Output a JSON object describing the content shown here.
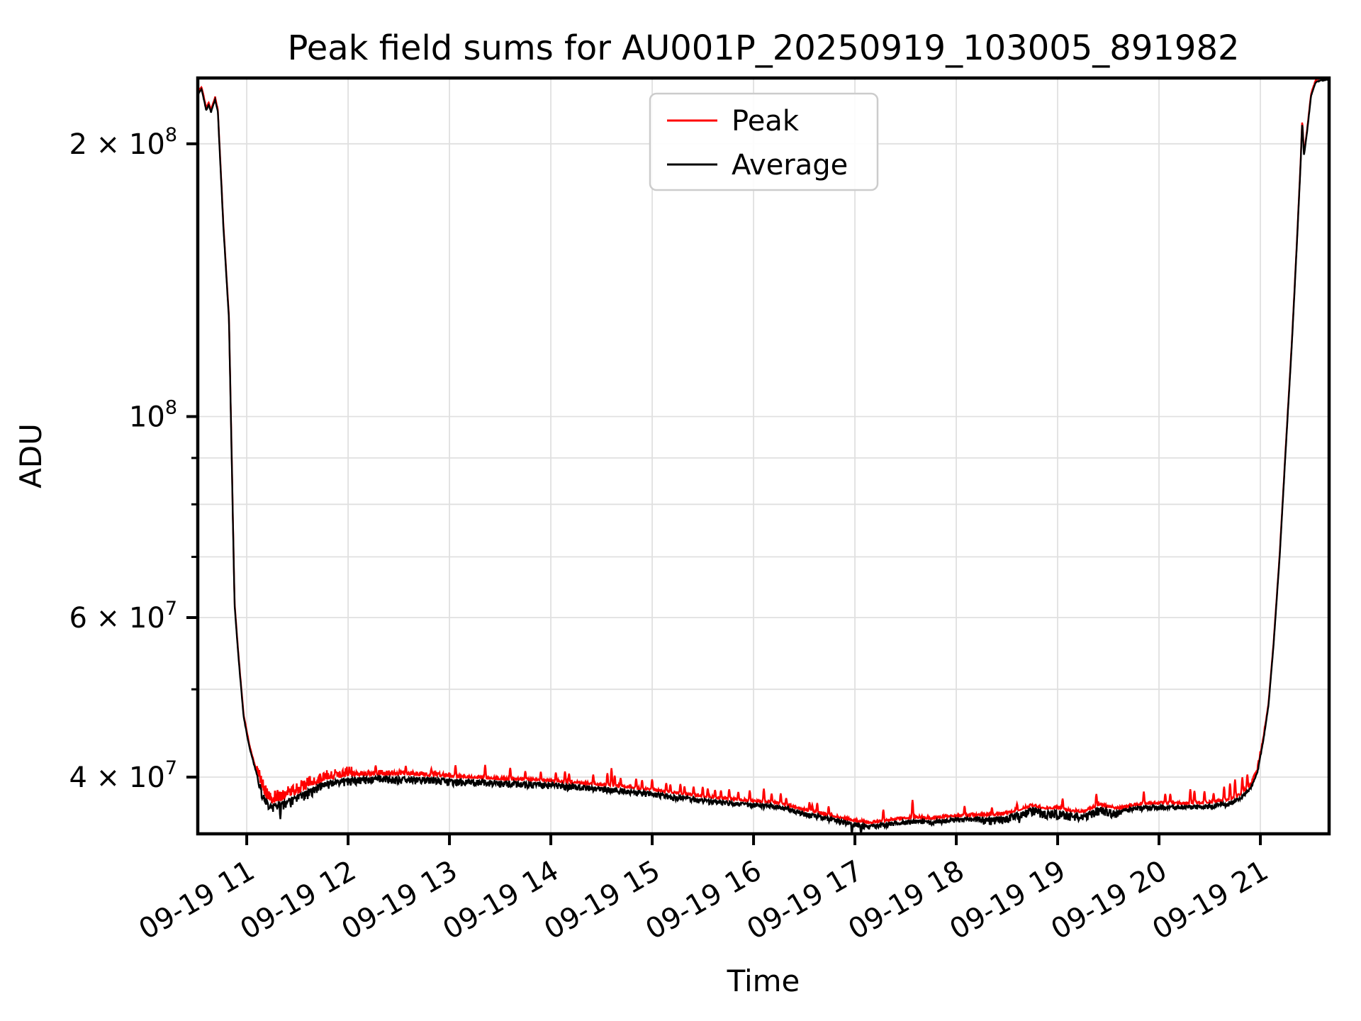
{
  "figure": {
    "title": "Peak field sums for AU001P_20250919_103005_891982",
    "xlabel": "Time",
    "ylabel": "ADU",
    "background": "#ffffff"
  },
  "legend": {
    "position": "upper center",
    "items": [
      {
        "label": "Peak",
        "color": "#ff0000"
      },
      {
        "label": "Average",
        "color": "#000000"
      }
    ]
  },
  "chart_data": {
    "type": "line",
    "title": "Peak field sums for AU001P_20250919_103005_891982",
    "xlabel": "Time",
    "ylabel": "ADU",
    "y_scale": "log",
    "grid": true,
    "legend_position": "upper center",
    "x_range_hours": [
      10.517,
      21.678
    ],
    "ylim": [
      34630000,
      236400000
    ],
    "x_ticks": [
      {
        "label": "09-19 11",
        "hour": 11
      },
      {
        "label": "09-19 12",
        "hour": 12
      },
      {
        "label": "09-19 13",
        "hour": 13
      },
      {
        "label": "09-19 14",
        "hour": 14
      },
      {
        "label": "09-19 15",
        "hour": 15
      },
      {
        "label": "09-19 16",
        "hour": 16
      },
      {
        "label": "09-19 17",
        "hour": 17
      },
      {
        "label": "09-19 18",
        "hour": 18
      },
      {
        "label": "09-19 19",
        "hour": 19
      },
      {
        "label": "09-19 20",
        "hour": 20
      },
      {
        "label": "09-19 21",
        "hour": 21
      }
    ],
    "y_ticks": [
      {
        "base": "2 × 10",
        "exp": "8",
        "value": 200000000
      },
      {
        "base": "10",
        "exp": "8",
        "value": 100000000
      },
      {
        "base": "6 × 10",
        "exp": "7",
        "value": 60000000
      },
      {
        "base": "4 × 10",
        "exp": "7",
        "value": 40000000
      }
    ],
    "y_minor_ticks": [
      90000000,
      80000000,
      70000000,
      50000000
    ],
    "noise_seed": 11,
    "red_base_offset_dec": 0.0018,
    "series": [
      {
        "name": "Peak",
        "color": "#ff0000",
        "role": "peak",
        "up_noise_segments": [
          [
            10.517,
            11.1,
            0.0012
          ],
          [
            11.1,
            11.65,
            0.013
          ],
          [
            11.65,
            12.05,
            0.011
          ],
          [
            12.05,
            13.1,
            0.005
          ],
          [
            13.1,
            20.75,
            0.0028
          ],
          [
            20.75,
            21.05,
            0.004
          ],
          [
            21.05,
            21.678,
            0.0008
          ]
        ],
        "spikes": [
          [
            12.27,
            0.012
          ],
          [
            12.57,
            0.012
          ],
          [
            12.82,
            0.01
          ],
          [
            13.06,
            0.015
          ],
          [
            13.35,
            0.017
          ],
          [
            13.6,
            0.015
          ],
          [
            13.75,
            0.012
          ],
          [
            13.9,
            0.012
          ],
          [
            14.05,
            0.012
          ],
          [
            14.14,
            0.014
          ],
          [
            14.18,
            0.012
          ],
          [
            14.42,
            0.013
          ],
          [
            14.56,
            0.016
          ],
          [
            14.6,
            0.022
          ],
          [
            14.63,
            0.014
          ],
          [
            14.69,
            0.012
          ],
          [
            14.84,
            0.013
          ],
          [
            14.9,
            0.012
          ],
          [
            15.0,
            0.014
          ],
          [
            15.14,
            0.012
          ],
          [
            15.18,
            0.011
          ],
          [
            15.28,
            0.013
          ],
          [
            15.32,
            0.011
          ],
          [
            15.41,
            0.012
          ],
          [
            15.5,
            0.013
          ],
          [
            15.55,
            0.012
          ],
          [
            15.62,
            0.011
          ],
          [
            15.68,
            0.011
          ],
          [
            15.76,
            0.013
          ],
          [
            15.85,
            0.011
          ],
          [
            15.96,
            0.014
          ],
          [
            16.1,
            0.017
          ],
          [
            16.18,
            0.012
          ],
          [
            16.27,
            0.014
          ],
          [
            16.32,
            0.01
          ],
          [
            16.55,
            0.012
          ],
          [
            16.58,
            0.01
          ],
          [
            16.63,
            0.013
          ],
          [
            16.74,
            0.012
          ],
          [
            17.28,
            0.015
          ],
          [
            17.57,
            0.022
          ],
          [
            18.08,
            0.013
          ],
          [
            18.35,
            0.011
          ],
          [
            18.6,
            0.01
          ],
          [
            19.05,
            0.014
          ],
          [
            19.38,
            0.016
          ],
          [
            19.85,
            0.016
          ],
          [
            20.06,
            0.013
          ],
          [
            20.11,
            0.013
          ],
          [
            20.31,
            0.018
          ],
          [
            20.35,
            0.016
          ],
          [
            20.45,
            0.015
          ],
          [
            20.54,
            0.012
          ],
          [
            20.64,
            0.018
          ],
          [
            20.7,
            0.02
          ],
          [
            20.75,
            0.022
          ],
          [
            20.82,
            0.02
          ],
          [
            20.87,
            0.018
          ]
        ]
      },
      {
        "name": "Average",
        "color": "#000000",
        "role": "average",
        "keypoints": [
          [
            10.517,
            227000000
          ],
          [
            10.555,
            230000000
          ],
          [
            10.6,
            218000000
          ],
          [
            10.625,
            221000000
          ],
          [
            10.648,
            217000000
          ],
          [
            10.688,
            224000000
          ],
          [
            10.715,
            217000000
          ],
          [
            10.77,
            162000000
          ],
          [
            10.825,
            128000000
          ],
          [
            10.88,
            62000000
          ],
          [
            10.92,
            54000000
          ],
          [
            10.97,
            46600000
          ],
          [
            11.03,
            43000000
          ],
          [
            11.1,
            40300000
          ],
          [
            11.15,
            38700000
          ],
          [
            11.22,
            37300000
          ],
          [
            11.35,
            37600000
          ],
          [
            11.5,
            38200000
          ],
          [
            11.65,
            39000000
          ],
          [
            11.8,
            39600000
          ],
          [
            12.0,
            39900000
          ],
          [
            12.3,
            40100000
          ],
          [
            12.7,
            40000000
          ],
          [
            13.1,
            39800000
          ],
          [
            13.5,
            39600000
          ],
          [
            14.0,
            39400000
          ],
          [
            14.5,
            39000000
          ],
          [
            15.0,
            38500000
          ],
          [
            15.55,
            37800000
          ],
          [
            15.8,
            37600000
          ],
          [
            16.0,
            37400000
          ],
          [
            16.2,
            37300000
          ],
          [
            16.35,
            37000000
          ],
          [
            16.5,
            36600000
          ],
          [
            16.65,
            36300000
          ],
          [
            16.85,
            35900000
          ],
          [
            17.0,
            35600000
          ],
          [
            17.15,
            35400000
          ],
          [
            17.3,
            35600000
          ],
          [
            17.45,
            35800000
          ],
          [
            17.6,
            35900000
          ],
          [
            17.75,
            35800000
          ],
          [
            17.95,
            36000000
          ],
          [
            18.15,
            36100000
          ],
          [
            18.35,
            36100000
          ],
          [
            18.5,
            36300000
          ],
          [
            18.62,
            36600000
          ],
          [
            18.75,
            37000000
          ],
          [
            18.88,
            36700000
          ],
          [
            19.0,
            36800000
          ],
          [
            19.12,
            36500000
          ],
          [
            19.25,
            36400000
          ],
          [
            19.42,
            37100000
          ],
          [
            19.58,
            36700000
          ],
          [
            19.72,
            37000000
          ],
          [
            19.88,
            37200000
          ],
          [
            20.1,
            37200000
          ],
          [
            20.3,
            37200000
          ],
          [
            20.5,
            37300000
          ],
          [
            20.68,
            37500000
          ],
          [
            20.8,
            38000000
          ],
          [
            20.9,
            38900000
          ],
          [
            20.97,
            40500000
          ],
          [
            21.03,
            44000000
          ],
          [
            21.08,
            48000000
          ],
          [
            21.13,
            56000000
          ],
          [
            21.19,
            70000000
          ],
          [
            21.25,
            92000000
          ],
          [
            21.31,
            120000000
          ],
          [
            21.36,
            155000000
          ],
          [
            21.395,
            188000000
          ],
          [
            21.413,
            212000000
          ],
          [
            21.43,
            194000000
          ],
          [
            21.46,
            206000000
          ],
          [
            21.5,
            226000000
          ],
          [
            21.545,
            234000000
          ],
          [
            21.6,
            235300000
          ],
          [
            21.678,
            235500000
          ]
        ],
        "down_noise_segments": [
          [
            10.517,
            11.1,
            0.0012
          ],
          [
            11.1,
            11.65,
            0.011
          ],
          [
            11.65,
            12.05,
            0.009
          ],
          [
            12.05,
            13.1,
            0.008
          ],
          [
            13.1,
            14.2,
            0.007
          ],
          [
            14.2,
            15.7,
            0.006
          ],
          [
            15.7,
            18.25,
            0.005
          ],
          [
            18.25,
            19.65,
            0.009
          ],
          [
            19.65,
            20.75,
            0.005
          ],
          [
            20.75,
            21.05,
            0.003
          ],
          [
            21.05,
            21.678,
            0.0008
          ]
        ],
        "down_spikes": [
          [
            11.33,
            0.019
          ],
          [
            16.97,
            0.014
          ],
          [
            17.06,
            0.011
          ],
          [
            18.62,
            0.012
          ],
          [
            19.0,
            0.011
          ]
        ]
      }
    ]
  }
}
